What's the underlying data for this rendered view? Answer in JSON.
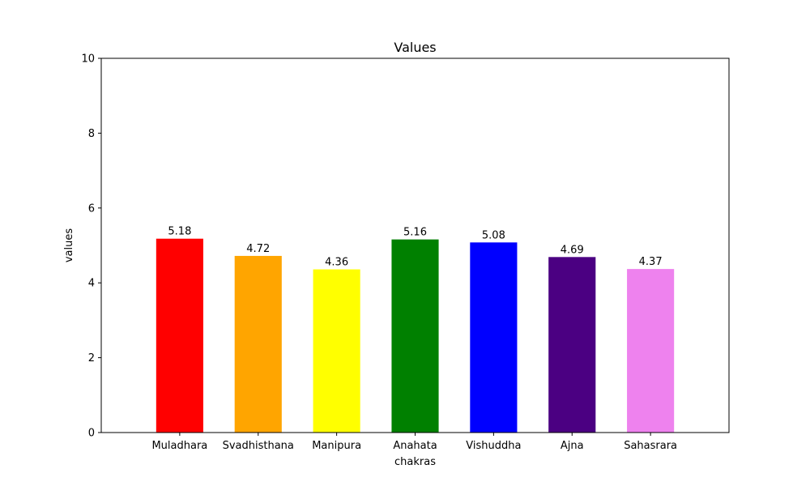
{
  "chart_data": {
    "type": "bar",
    "title": "Values",
    "xlabel": "chakras",
    "ylabel": "values",
    "ylim": [
      0,
      10
    ],
    "yticks": [
      0,
      2,
      4,
      6,
      8,
      10
    ],
    "grid": false,
    "categories": [
      "Muladhara",
      "Svadhisthana",
      "Manipura",
      "Anahata",
      "Vishuddha",
      "Ajna",
      "Sahasrara"
    ],
    "values": [
      5.18,
      4.72,
      4.36,
      5.16,
      5.08,
      4.69,
      4.37
    ],
    "value_labels": [
      "5.18",
      "4.72",
      "4.36",
      "5.16",
      "5.08",
      "4.69",
      "4.37"
    ],
    "colors": [
      "#ff0000",
      "#ffa500",
      "#ffff00",
      "#008000",
      "#0000ff",
      "#4b0082",
      "#ee82ee"
    ]
  }
}
